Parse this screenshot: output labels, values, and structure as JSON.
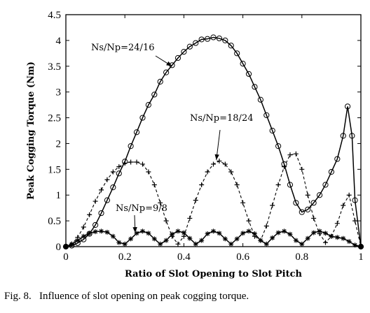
{
  "caption": {
    "label": "Fig. 8.",
    "text": "Influence of slot opening on peak cogging torque."
  },
  "chart_data": {
    "type": "line",
    "xlabel": "Ratio of Slot Opening to Slot Pitch",
    "ylabel": "Peak Cogging Torque (Nm)",
    "xlim": [
      0,
      1
    ],
    "ylim": [
      0,
      4.5
    ],
    "xticks": [
      0,
      0.2,
      0.4,
      0.6,
      0.8,
      1
    ],
    "xtick_labels": [
      "0",
      "0.2",
      "0.4",
      "0.6",
      "0.8",
      "1"
    ],
    "yticks": [
      0,
      0.5,
      1,
      1.5,
      2,
      2.5,
      3,
      3.5,
      4,
      4.5
    ],
    "ytick_labels": [
      "0",
      "0.5",
      "1",
      "1.5",
      "2",
      "2.5",
      "3",
      "3.5",
      "4",
      "4.5"
    ],
    "grid": false,
    "series": [
      {
        "name": "Ns/Np=24/16",
        "style": "solid",
        "marker": "circle",
        "x": [
          0,
          0.0625,
          0.125,
          0.1875,
          0.25,
          0.3125,
          0.375,
          0.4375,
          0.5,
          0.5625,
          0.625,
          0.6875,
          0.75,
          0.8125,
          0.875,
          0.9375,
          1
        ],
        "y": [
          0,
          0.1,
          0.6,
          1.4,
          2.3,
          3.0,
          3.55,
          3.95,
          4.05,
          3.9,
          3.2,
          2.4,
          1.45,
          0.8,
          1.5,
          2.45,
          0
        ],
        "points": [
          [
            0,
            0
          ],
          [
            0.02,
            0.02
          ],
          [
            0.04,
            0.07
          ],
          [
            0.06,
            0.14
          ],
          [
            0.08,
            0.25
          ],
          [
            0.1,
            0.42
          ],
          [
            0.12,
            0.65
          ],
          [
            0.14,
            0.9
          ],
          [
            0.16,
            1.15
          ],
          [
            0.18,
            1.42
          ],
          [
            0.2,
            1.65
          ],
          [
            0.22,
            1.95
          ],
          [
            0.24,
            2.22
          ],
          [
            0.26,
            2.5
          ],
          [
            0.28,
            2.75
          ],
          [
            0.3,
            2.95
          ],
          [
            0.32,
            3.2
          ],
          [
            0.34,
            3.38
          ],
          [
            0.36,
            3.52
          ],
          [
            0.38,
            3.66
          ],
          [
            0.4,
            3.78
          ],
          [
            0.42,
            3.88
          ],
          [
            0.44,
            3.95
          ],
          [
            0.46,
            4.02
          ],
          [
            0.48,
            4.03
          ],
          [
            0.5,
            4.06
          ],
          [
            0.52,
            4.04
          ],
          [
            0.54,
            4.0
          ],
          [
            0.56,
            3.9
          ],
          [
            0.58,
            3.75
          ],
          [
            0.6,
            3.55
          ],
          [
            0.62,
            3.35
          ],
          [
            0.64,
            3.1
          ],
          [
            0.66,
            2.85
          ],
          [
            0.68,
            2.55
          ],
          [
            0.7,
            2.25
          ],
          [
            0.72,
            1.95
          ],
          [
            0.74,
            1.6
          ],
          [
            0.76,
            1.2
          ],
          [
            0.78,
            0.85
          ],
          [
            0.8,
            0.67
          ],
          [
            0.82,
            0.72
          ],
          [
            0.84,
            0.85
          ],
          [
            0.86,
            1.0
          ],
          [
            0.88,
            1.2
          ],
          [
            0.9,
            1.45
          ],
          [
            0.92,
            1.7
          ],
          [
            0.94,
            2.15
          ],
          [
            0.955,
            2.72
          ],
          [
            0.97,
            2.15
          ],
          [
            0.98,
            0.9
          ],
          [
            1.0,
            0
          ]
        ]
      },
      {
        "name": "Ns/Np=18/24",
        "style": "dashed",
        "marker": "plus",
        "points": [
          [
            0,
            0
          ],
          [
            0.02,
            0.05
          ],
          [
            0.04,
            0.18
          ],
          [
            0.06,
            0.38
          ],
          [
            0.08,
            0.62
          ],
          [
            0.1,
            0.88
          ],
          [
            0.12,
            1.1
          ],
          [
            0.14,
            1.3
          ],
          [
            0.16,
            1.45
          ],
          [
            0.18,
            1.55
          ],
          [
            0.2,
            1.62
          ],
          [
            0.22,
            1.64
          ],
          [
            0.24,
            1.64
          ],
          [
            0.26,
            1.6
          ],
          [
            0.28,
            1.45
          ],
          [
            0.3,
            1.2
          ],
          [
            0.32,
            0.85
          ],
          [
            0.34,
            0.5
          ],
          [
            0.36,
            0.2
          ],
          [
            0.38,
            0.05
          ],
          [
            0.4,
            0.2
          ],
          [
            0.42,
            0.55
          ],
          [
            0.44,
            0.9
          ],
          [
            0.46,
            1.2
          ],
          [
            0.48,
            1.45
          ],
          [
            0.5,
            1.6
          ],
          [
            0.52,
            1.66
          ],
          [
            0.54,
            1.6
          ],
          [
            0.56,
            1.45
          ],
          [
            0.58,
            1.2
          ],
          [
            0.6,
            0.85
          ],
          [
            0.62,
            0.5
          ],
          [
            0.64,
            0.2
          ],
          [
            0.66,
            0.12
          ],
          [
            0.68,
            0.4
          ],
          [
            0.7,
            0.8
          ],
          [
            0.72,
            1.2
          ],
          [
            0.74,
            1.55
          ],
          [
            0.76,
            1.78
          ],
          [
            0.78,
            1.8
          ],
          [
            0.8,
            1.5
          ],
          [
            0.82,
            1.0
          ],
          [
            0.84,
            0.55
          ],
          [
            0.86,
            0.25
          ],
          [
            0.88,
            0.08
          ],
          [
            0.9,
            0.2
          ],
          [
            0.92,
            0.45
          ],
          [
            0.94,
            0.8
          ],
          [
            0.96,
            1.0
          ],
          [
            0.98,
            0.5
          ],
          [
            1.0,
            0
          ]
        ]
      },
      {
        "name": "Ns/Np=9/8",
        "style": "solid",
        "marker": "asterisk",
        "points": [
          [
            0,
            0
          ],
          [
            0.02,
            0.05
          ],
          [
            0.04,
            0.12
          ],
          [
            0.06,
            0.2
          ],
          [
            0.08,
            0.26
          ],
          [
            0.1,
            0.29
          ],
          [
            0.12,
            0.3
          ],
          [
            0.14,
            0.28
          ],
          [
            0.16,
            0.2
          ],
          [
            0.18,
            0.08
          ],
          [
            0.2,
            0.05
          ],
          [
            0.22,
            0.15
          ],
          [
            0.24,
            0.26
          ],
          [
            0.26,
            0.3
          ],
          [
            0.28,
            0.26
          ],
          [
            0.3,
            0.15
          ],
          [
            0.32,
            0.05
          ],
          [
            0.34,
            0.12
          ],
          [
            0.36,
            0.24
          ],
          [
            0.38,
            0.3
          ],
          [
            0.4,
            0.27
          ],
          [
            0.42,
            0.16
          ],
          [
            0.44,
            0.05
          ],
          [
            0.46,
            0.12
          ],
          [
            0.48,
            0.25
          ],
          [
            0.5,
            0.3
          ],
          [
            0.52,
            0.26
          ],
          [
            0.54,
            0.15
          ],
          [
            0.56,
            0.05
          ],
          [
            0.58,
            0.15
          ],
          [
            0.6,
            0.26
          ],
          [
            0.62,
            0.3
          ],
          [
            0.64,
            0.25
          ],
          [
            0.66,
            0.12
          ],
          [
            0.68,
            0.05
          ],
          [
            0.7,
            0.17
          ],
          [
            0.72,
            0.27
          ],
          [
            0.74,
            0.3
          ],
          [
            0.76,
            0.24
          ],
          [
            0.78,
            0.12
          ],
          [
            0.8,
            0.05
          ],
          [
            0.82,
            0.16
          ],
          [
            0.84,
            0.27
          ],
          [
            0.86,
            0.3
          ],
          [
            0.88,
            0.26
          ],
          [
            0.9,
            0.2
          ],
          [
            0.92,
            0.18
          ],
          [
            0.94,
            0.16
          ],
          [
            0.96,
            0.1
          ],
          [
            0.98,
            0.03
          ],
          [
            1.0,
            0
          ]
        ]
      }
    ],
    "annotations": [
      {
        "text": "Ns/Np=24/16",
        "series": "Ns/Np=24/16",
        "arrow_to": [
          0.36,
          3.5
        ]
      },
      {
        "text": "Ns/Np=18/24",
        "series": "Ns/Np=18/24",
        "arrow_to": [
          0.51,
          1.68
        ]
      },
      {
        "text": "Ns/Np=9/8",
        "series": "Ns/Np=9/8",
        "arrow_to": [
          0.235,
          0.27
        ]
      }
    ]
  }
}
